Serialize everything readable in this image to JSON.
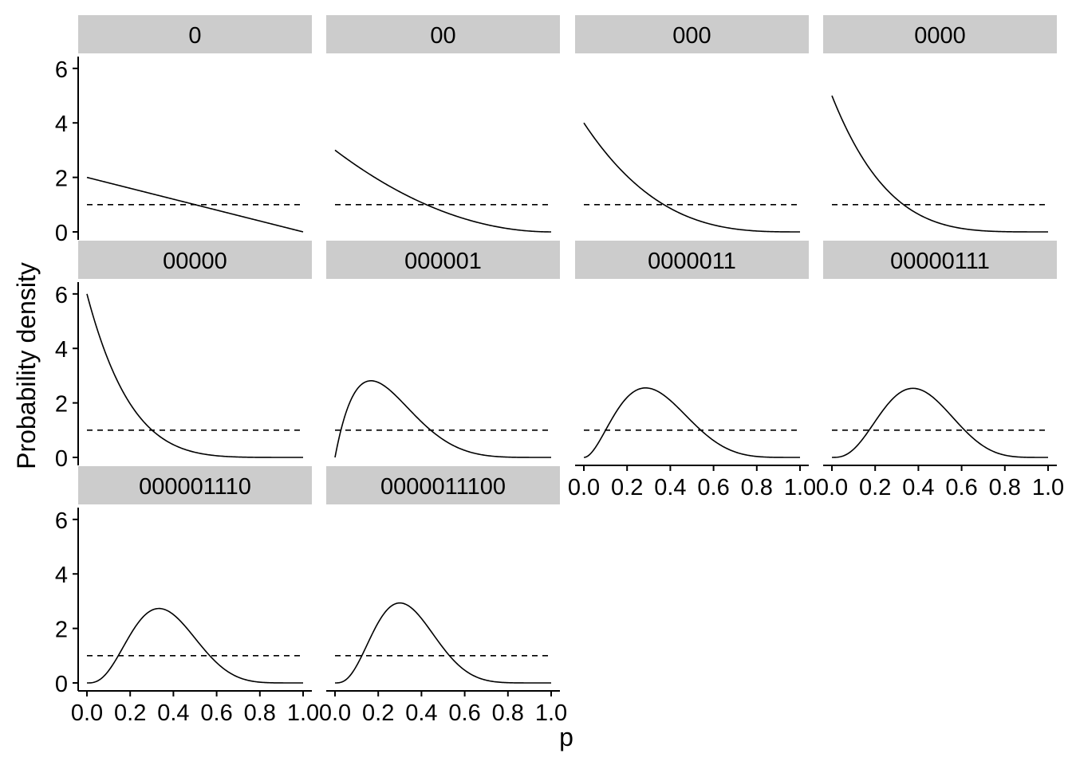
{
  "chart_data": {
    "type": "line",
    "xlabel": "p",
    "ylabel": "Probability density",
    "xlim": [
      0,
      1
    ],
    "ylim": [
      0,
      6.2
    ],
    "x_ticks": [
      "0.0",
      "0.2",
      "0.4",
      "0.6",
      "0.8",
      "1.0"
    ],
    "x_tick_values": [
      0,
      0.2,
      0.4,
      0.6,
      0.8,
      1.0
    ],
    "y_ticks": [
      "0",
      "2",
      "4",
      "6"
    ],
    "y_tick_values": [
      0,
      2,
      4,
      6
    ],
    "reference_line": {
      "y": 1,
      "style": "dashed"
    },
    "grid": false,
    "panels": [
      {
        "label": "0",
        "beta_a": 1,
        "beta_b": 2
      },
      {
        "label": "00",
        "beta_a": 1,
        "beta_b": 3
      },
      {
        "label": "000",
        "beta_a": 1,
        "beta_b": 4
      },
      {
        "label": "0000",
        "beta_a": 1,
        "beta_b": 5
      },
      {
        "label": "00000",
        "beta_a": 1,
        "beta_b": 6
      },
      {
        "label": "000001",
        "beta_a": 2,
        "beta_b": 6
      },
      {
        "label": "0000011",
        "beta_a": 3,
        "beta_b": 6
      },
      {
        "label": "00000111",
        "beta_a": 4,
        "beta_b": 6
      },
      {
        "label": "000001110",
        "beta_a": 4,
        "beta_b": 7
      },
      {
        "label": "0000011100",
        "beta_a": 4,
        "beta_b": 8
      }
    ]
  }
}
